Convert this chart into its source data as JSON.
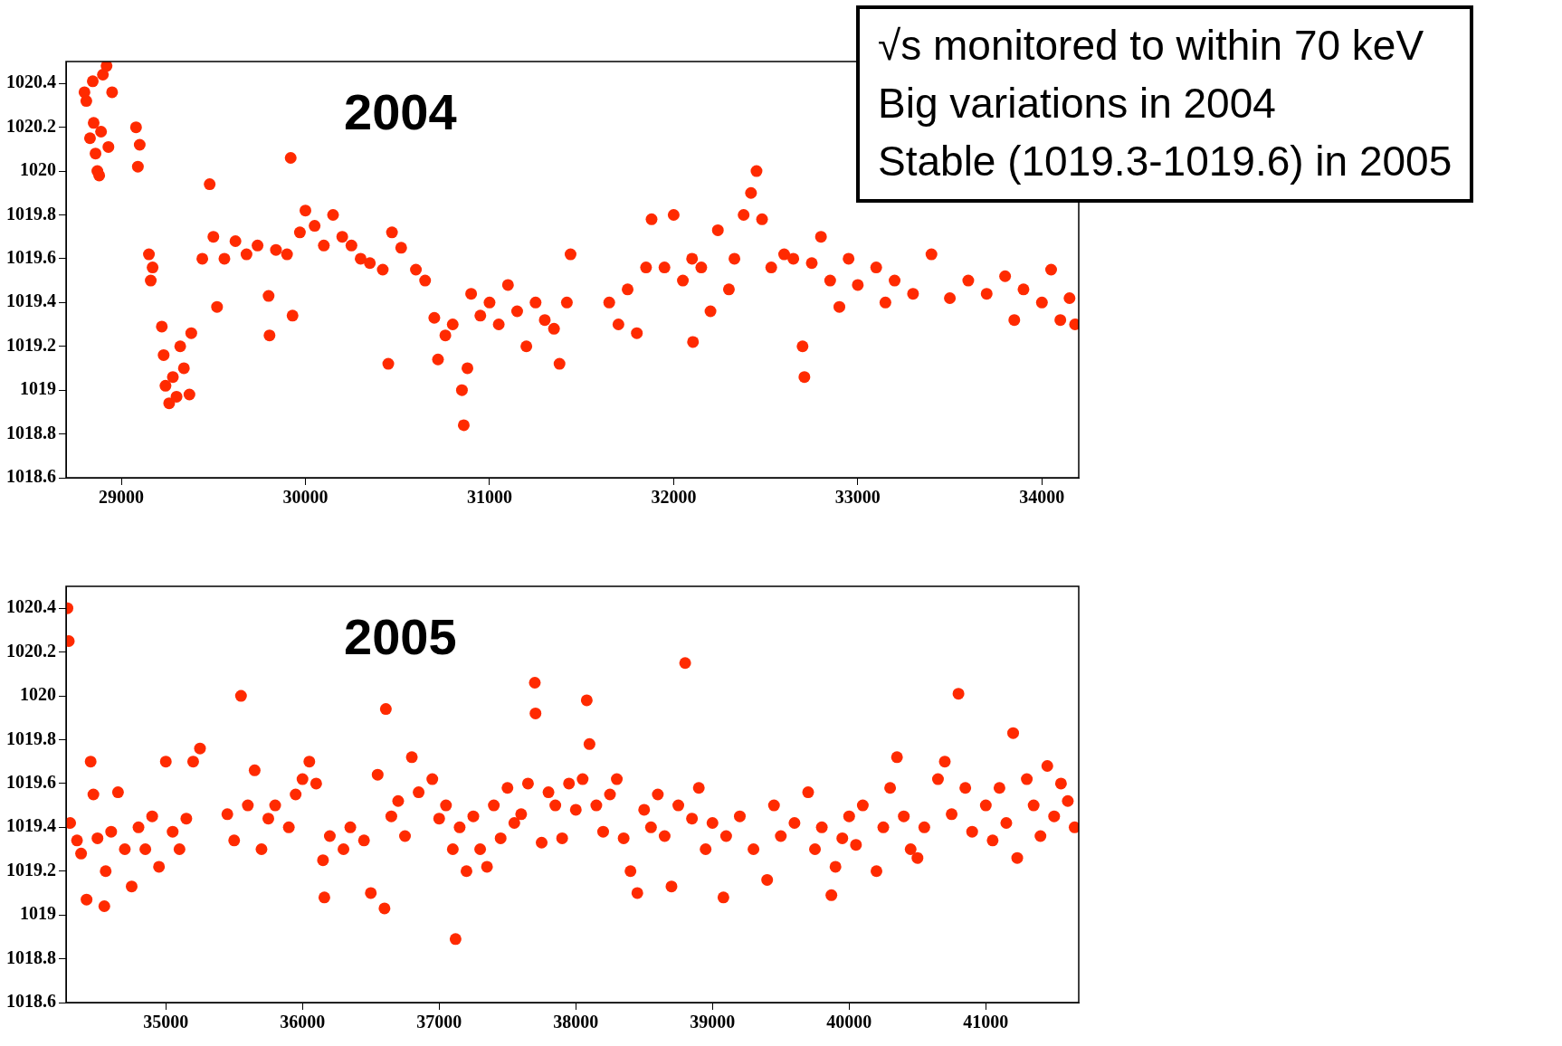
{
  "chart_data": [
    {
      "type": "scatter",
      "title": "2004",
      "annotations": [
        "√s monitored to within 70 keV",
        "Big variations in 2004",
        "Stable (1019.3-1019.6) in 2005"
      ],
      "color": "#ff2a00",
      "marker": "circle",
      "xlim": [
        28700,
        34200
      ],
      "ylim": [
        1018.6,
        1020.5
      ],
      "xticks": [
        29000,
        30000,
        31000,
        32000,
        33000,
        34000
      ],
      "yticks": [
        1018.6,
        1018.8,
        1019,
        1019.2,
        1019.4,
        1019.6,
        1019.8,
        1020,
        1020.2,
        1020.4
      ],
      "x": [
        28800,
        28810,
        28830,
        28850,
        28860,
        28870,
        28880,
        28890,
        28900,
        28920,
        28930,
        28950,
        28845,
        29080,
        29090,
        29100,
        29150,
        29160,
        29170,
        29220,
        29230,
        29240,
        29260,
        29280,
        29300,
        29320,
        29340,
        29370,
        29380,
        29440,
        29480,
        29500,
        29520,
        29560,
        29620,
        29680,
        29740,
        29800,
        29805,
        29840,
        29900,
        29920,
        29930,
        29970,
        30000,
        30050,
        30100,
        30150,
        30200,
        30250,
        30300,
        30350,
        30420,
        30450,
        30470,
        30520,
        30600,
        30650,
        30700,
        30720,
        30760,
        30800,
        30850,
        30860,
        30880,
        30900,
        30950,
        31000,
        31050,
        31100,
        31150,
        31200,
        31250,
        31300,
        31350,
        31380,
        31420,
        31440,
        31650,
        31700,
        31750,
        31800,
        31850,
        31880,
        31950,
        32000,
        32050,
        32100,
        32105,
        32150,
        32200,
        32240,
        32300,
        32330,
        32380,
        32420,
        32450,
        32480,
        32530,
        32600,
        32650,
        32700,
        32710,
        32750,
        32800,
        32850,
        32900,
        32950,
        33000,
        33100,
        33150,
        33200,
        33300,
        33400,
        33500,
        33600,
        33700,
        33800,
        33850,
        33900,
        34000,
        34050,
        34100,
        34150,
        34180
      ],
      "values": [
        1020.36,
        1020.32,
        1020.15,
        1020.22,
        1020.08,
        1020.0,
        1019.98,
        1020.18,
        1020.44,
        1020.48,
        1020.11,
        1020.36,
        1020.41,
        1020.2,
        1020.02,
        1020.12,
        1019.62,
        1019.5,
        1019.56,
        1019.29,
        1019.16,
        1019.02,
        1018.94,
        1019.06,
        1018.97,
        1019.2,
        1019.1,
        1018.98,
        1019.26,
        1019.6,
        1019.94,
        1019.7,
        1019.38,
        1019.6,
        1019.68,
        1019.62,
        1019.66,
        1019.43,
        1019.25,
        1019.64,
        1019.62,
        1020.06,
        1019.34,
        1019.72,
        1019.82,
        1019.75,
        1019.66,
        1019.8,
        1019.7,
        1019.66,
        1019.6,
        1019.58,
        1019.55,
        1019.12,
        1019.72,
        1019.65,
        1019.55,
        1019.5,
        1019.33,
        1019.14,
        1019.25,
        1019.3,
        1019.0,
        1018.84,
        1019.1,
        1019.44,
        1019.34,
        1019.4,
        1019.3,
        1019.48,
        1019.36,
        1019.2,
        1019.4,
        1019.32,
        1019.28,
        1019.12,
        1019.4,
        1019.62,
        1019.4,
        1019.3,
        1019.46,
        1019.26,
        1019.56,
        1019.78,
        1019.56,
        1019.8,
        1019.5,
        1019.6,
        1019.22,
        1019.56,
        1019.36,
        1019.73,
        1019.46,
        1019.6,
        1019.8,
        1019.9,
        1020.0,
        1019.78,
        1019.56,
        1019.62,
        1019.6,
        1019.2,
        1019.06,
        1019.58,
        1019.7,
        1019.5,
        1019.38,
        1019.6,
        1019.48,
        1019.56,
        1019.4,
        1019.5,
        1019.44,
        1019.62,
        1019.42,
        1019.5,
        1019.44,
        1019.52,
        1019.32,
        1019.46,
        1019.4,
        1019.55,
        1019.32,
        1019.42,
        1019.3
      ]
    },
    {
      "type": "scatter",
      "title": "2005",
      "color": "#ff2a00",
      "marker": "circle",
      "xlim": [
        34270,
        41680
      ],
      "ylim": [
        1018.6,
        1020.5
      ],
      "xticks": [
        35000,
        36000,
        37000,
        38000,
        39000,
        40000,
        41000
      ],
      "yticks": [
        1018.6,
        1018.8,
        1019,
        1019.2,
        1019.4,
        1019.6,
        1019.8,
        1020,
        1020.2,
        1020.4
      ],
      "x": [
        34280,
        34290,
        34300,
        34350,
        34380,
        34420,
        34450,
        34470,
        34500,
        34550,
        34560,
        34600,
        34650,
        34700,
        34750,
        34800,
        34850,
        34900,
        34950,
        35000,
        35050,
        35100,
        35150,
        35200,
        35250,
        35450,
        35500,
        35550,
        35600,
        35650,
        35700,
        35750,
        35800,
        35900,
        35950,
        36000,
        36050,
        36100,
        36150,
        36160,
        36200,
        36300,
        36350,
        36450,
        36500,
        36550,
        36600,
        36610,
        36650,
        36700,
        36750,
        36800,
        36850,
        36950,
        37000,
        37050,
        37100,
        37120,
        37150,
        37200,
        37250,
        37300,
        37350,
        37400,
        37450,
        37500,
        37550,
        37600,
        37650,
        37700,
        37705,
        37750,
        37800,
        37850,
        37900,
        37950,
        38000,
        38050,
        38080,
        38100,
        38150,
        38200,
        38250,
        38300,
        38350,
        38400,
        38450,
        38500,
        38550,
        38600,
        38650,
        38700,
        38750,
        38800,
        38850,
        38900,
        38950,
        39000,
        39080,
        39100,
        39200,
        39300,
        39400,
        39450,
        39500,
        39600,
        39700,
        39750,
        39800,
        39870,
        39900,
        39950,
        40000,
        40050,
        40100,
        40200,
        40250,
        40300,
        40350,
        40400,
        40450,
        40500,
        40550,
        40650,
        40700,
        40750,
        40800,
        40850,
        40900,
        41000,
        41050,
        41100,
        41150,
        41200,
        41230,
        41300,
        41350,
        41400,
        41450,
        41500,
        41550,
        41600,
        41650
      ],
      "values": [
        1020.4,
        1020.25,
        1019.42,
        1019.34,
        1019.28,
        1019.07,
        1019.7,
        1019.55,
        1019.35,
        1019.04,
        1019.2,
        1019.38,
        1019.56,
        1019.3,
        1019.13,
        1019.4,
        1019.3,
        1019.45,
        1019.22,
        1019.7,
        1019.38,
        1019.3,
        1019.44,
        1019.7,
        1019.76,
        1019.46,
        1019.34,
        1020.0,
        1019.5,
        1019.66,
        1019.3,
        1019.44,
        1019.5,
        1019.4,
        1019.55,
        1019.62,
        1019.7,
        1019.6,
        1019.25,
        1019.08,
        1019.36,
        1019.3,
        1019.4,
        1019.34,
        1019.1,
        1019.64,
        1019.03,
        1019.94,
        1019.45,
        1019.52,
        1019.36,
        1019.72,
        1019.56,
        1019.62,
        1019.44,
        1019.5,
        1019.3,
        1018.89,
        1019.4,
        1019.2,
        1019.45,
        1019.3,
        1019.22,
        1019.5,
        1019.35,
        1019.58,
        1019.42,
        1019.46,
        1019.6,
        1020.06,
        1019.92,
        1019.33,
        1019.56,
        1019.5,
        1019.35,
        1019.6,
        1019.48,
        1019.62,
        1019.98,
        1019.78,
        1019.5,
        1019.38,
        1019.55,
        1019.62,
        1019.35,
        1019.2,
        1019.1,
        1019.48,
        1019.4,
        1019.55,
        1019.36,
        1019.13,
        1019.5,
        1020.15,
        1019.44,
        1019.58,
        1019.3,
        1019.42,
        1019.08,
        1019.36,
        1019.45,
        1019.3,
        1019.16,
        1019.5,
        1019.36,
        1019.42,
        1019.56,
        1019.3,
        1019.4,
        1019.09,
        1019.22,
        1019.35,
        1019.45,
        1019.32,
        1019.5,
        1019.2,
        1019.4,
        1019.58,
        1019.72,
        1019.45,
        1019.3,
        1019.26,
        1019.4,
        1019.62,
        1019.7,
        1019.46,
        1020.01,
        1019.58,
        1019.38,
        1019.5,
        1019.34,
        1019.58,
        1019.42,
        1019.83,
        1019.26,
        1019.62,
        1019.5,
        1019.36,
        1019.68,
        1019.45,
        1019.6,
        1019.52,
        1019.4
      ]
    }
  ]
}
